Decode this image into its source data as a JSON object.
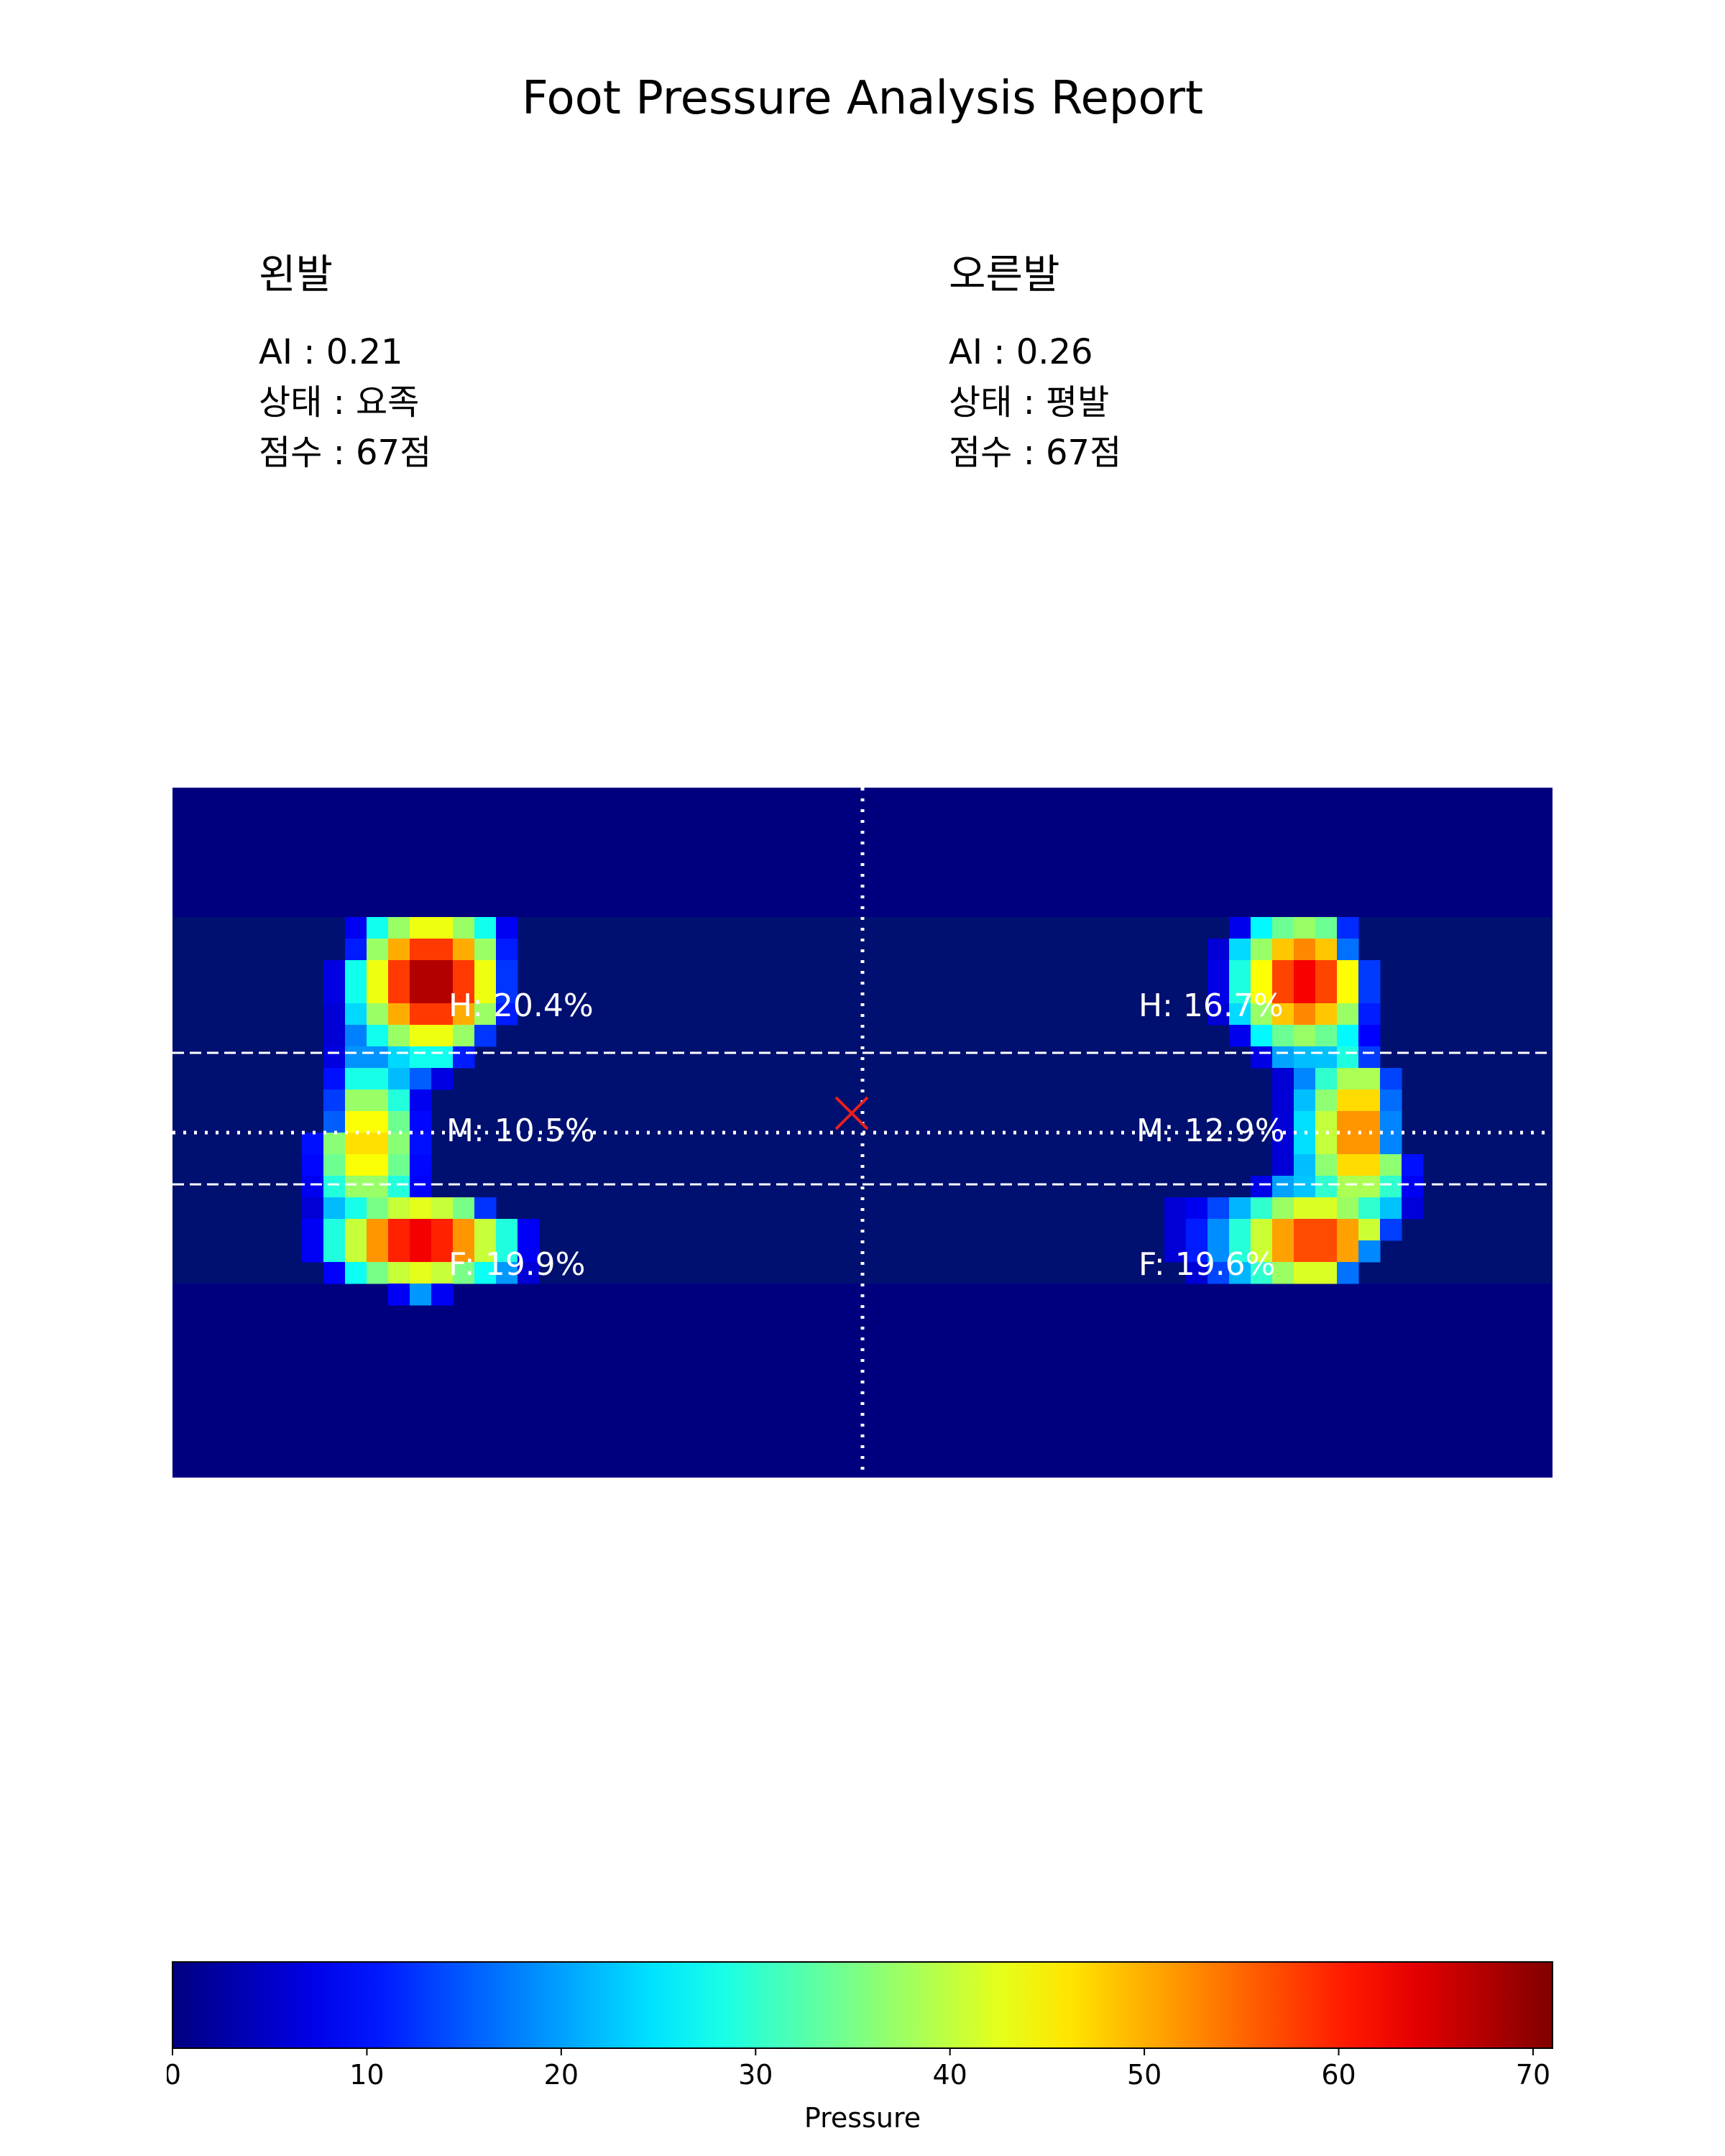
{
  "title": "Foot Pressure Analysis Report",
  "left_foot": {
    "heading": "왼발",
    "ai_label": "AI",
    "ai_value": "0.21",
    "status_label": "상태",
    "status_value": "요족",
    "score_label": "점수",
    "score_value": "67점"
  },
  "right_foot": {
    "heading": "오른발",
    "ai_label": "AI",
    "ai_value": "0.26",
    "status_label": "상태",
    "status_value": "평발",
    "score_label": "점수",
    "score_value": "67점"
  },
  "separator": " : ",
  "colors": {
    "background_cell": "#00007f",
    "band_highlight": "#001070",
    "guide_lines": "#ffffff",
    "cop_marker": "#e8201c"
  },
  "chart_data": [
    {
      "type": "heatmap",
      "colormap": "jet",
      "grid_columns": 64,
      "grid_rows": 32,
      "value_range": [
        0,
        71
      ],
      "regions": [
        {
          "foot": "left",
          "zone": "H",
          "label": "H: 20.4%",
          "percent": 20.4
        },
        {
          "foot": "left",
          "zone": "M",
          "label": "M: 10.5%",
          "percent": 10.5
        },
        {
          "foot": "left",
          "zone": "F",
          "label": "F: 19.9%",
          "percent": 19.9
        },
        {
          "foot": "right",
          "zone": "H",
          "label": "H: 16.7%",
          "percent": 16.7
        },
        {
          "foot": "right",
          "zone": "M",
          "label": "M: 12.9%",
          "percent": 12.9
        },
        {
          "foot": "right",
          "zone": "F",
          "label": "F: 19.6%",
          "percent": 19.6
        }
      ],
      "center_of_pressure_marker": "red-x",
      "guide_lines": "dashed zone boundaries, dotted center cross"
    },
    {
      "type": "colorbar",
      "colormap": "jet",
      "range": [
        0,
        71
      ],
      "ticks": [
        0,
        10,
        20,
        30,
        40,
        50,
        60,
        70
      ],
      "label": "Pressure"
    }
  ]
}
